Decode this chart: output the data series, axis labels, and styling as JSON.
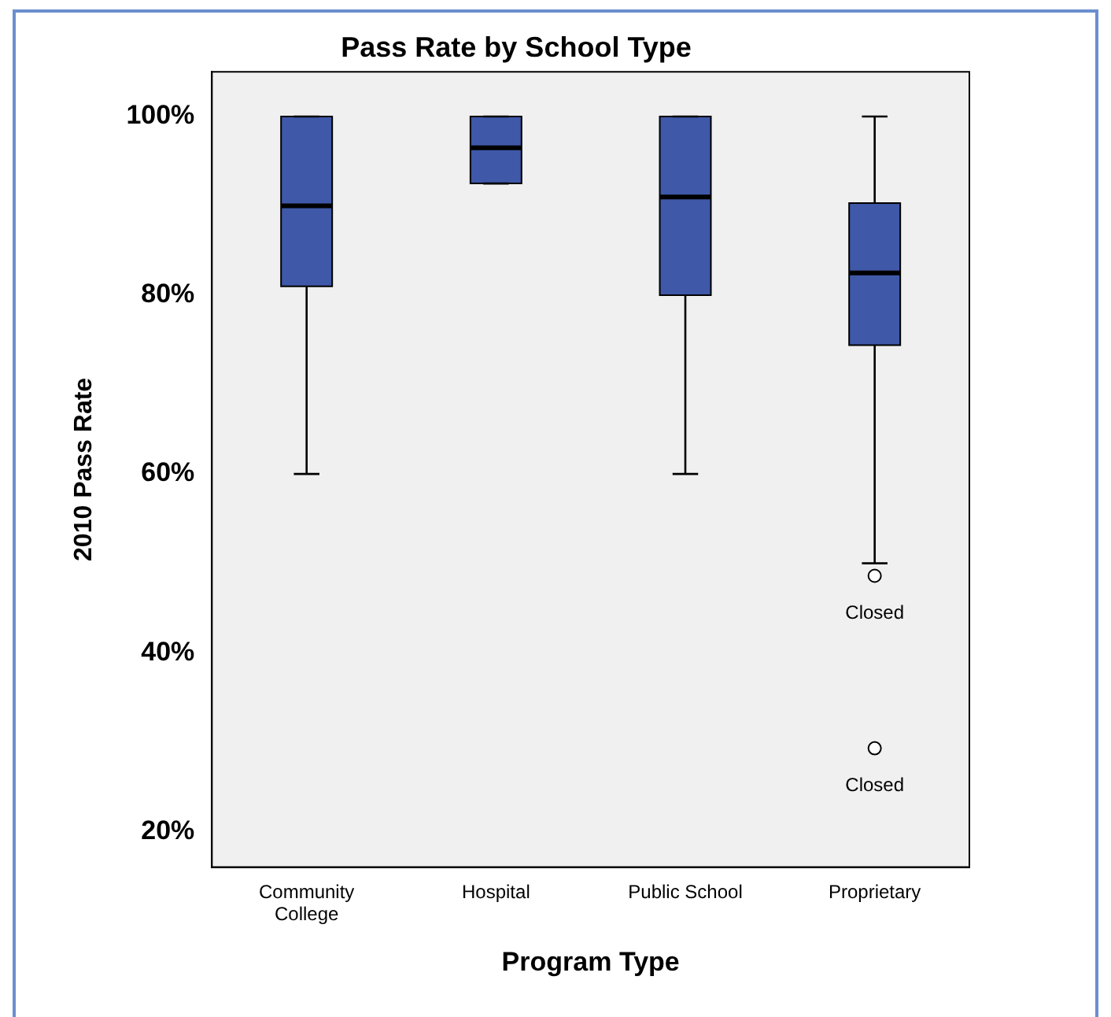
{
  "chart_data": {
    "type": "box",
    "title": "Pass Rate by School Type",
    "xlabel": "Program Type",
    "ylabel": "2010 Pass Rate",
    "categories": [
      "Community College",
      "Hospital",
      "Public School",
      "Proprietary"
    ],
    "color": "#3f58a8",
    "boxes": [
      {
        "low": 60,
        "q1": 81,
        "median": 90,
        "q3": 100,
        "high": 100
      },
      {
        "low": 92.5,
        "q1": 92.5,
        "median": 96.5,
        "q3": 100,
        "high": 100
      },
      {
        "low": 60,
        "q1": 80,
        "median": 91,
        "q3": 100,
        "high": 100
      },
      {
        "low": 50,
        "q1": 74.4,
        "median": 82.5,
        "q3": 90.3,
        "high": 100,
        "outliers": [
          48.6,
          29.3
        ]
      }
    ],
    "ylim": [
      16,
      105
    ],
    "yticks": [
      {
        "value": 20,
        "label": "20%"
      },
      {
        "value": 40,
        "label": "40%"
      },
      {
        "value": 60,
        "label": "60%"
      },
      {
        "value": 80,
        "label": "80%"
      },
      {
        "value": 100,
        "label": "100%"
      }
    ],
    "annotations": [
      "Closed",
      "Closed"
    ],
    "grid": false,
    "legend": false
  }
}
